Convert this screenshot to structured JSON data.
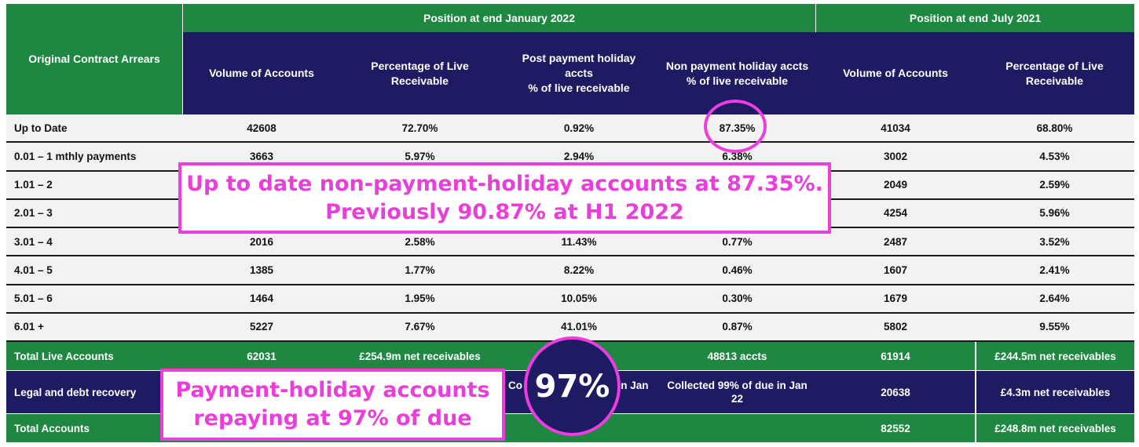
{
  "header": {
    "first_col": "Original Contract Arrears",
    "group_jan": "Position at end January 2022",
    "group_jul": "Position at end July 2021",
    "columns": [
      "Volume of Accounts",
      "Percentage of Live\nReceivable",
      "Post payment holiday\naccts\n% of live receivable",
      "Non payment holiday accts\n% of live receivable",
      "Volume of Accounts",
      "Percentage of Live\nReceivable"
    ]
  },
  "rows": [
    {
      "label": "Up to Date",
      "vol_jan": "42608",
      "pct_jan": "72.70%",
      "post_ph": "0.92%",
      "non_ph": "87.35%",
      "vol_jul": "41034",
      "pct_jul": "68.80%"
    },
    {
      "label": "0.01 – 1 mthly payments",
      "vol_jan": "3663",
      "pct_jan": "5.97%",
      "post_ph": "2.94%",
      "non_ph": "6.38%",
      "vol_jul": "3002",
      "pct_jul": "4.53%"
    },
    {
      "label": "1.01 – 2",
      "vol_jan": "",
      "pct_jan": "",
      "post_ph": "",
      "non_ph": "",
      "vol_jul": "2049",
      "pct_jul": "2.59%"
    },
    {
      "label": "2.01 – 3",
      "vol_jan": "",
      "pct_jan": "",
      "post_ph": "",
      "non_ph": "",
      "vol_jul": "4254",
      "pct_jul": "5.96%"
    },
    {
      "label": "3.01 – 4",
      "vol_jan": "2016",
      "pct_jan": "2.58%",
      "post_ph": "11.43%",
      "non_ph": "0.77%",
      "vol_jul": "2487",
      "pct_jul": "3.52%"
    },
    {
      "label": "4.01 – 5",
      "vol_jan": "1385",
      "pct_jan": "1.77%",
      "post_ph": "8.22%",
      "non_ph": "0.46%",
      "vol_jul": "1607",
      "pct_jul": "2.41%"
    },
    {
      "label": "5.01 – 6",
      "vol_jan": "1464",
      "pct_jan": "1.95%",
      "post_ph": "10.05%",
      "non_ph": "0.30%",
      "vol_jul": "1679",
      "pct_jul": "2.64%"
    },
    {
      "label": "6.01 +",
      "vol_jan": "5227",
      "pct_jan": "7.67%",
      "post_ph": "41.01%",
      "non_ph": "0.87%",
      "vol_jul": "5802",
      "pct_jul": "9.55%"
    }
  ],
  "total_live": {
    "label": "Total  Live Accounts",
    "vol_jan": "62031",
    "pct_jan": "£254.9m net receivables",
    "non_ph": "48813 accts",
    "vol_jul": "61914",
    "pct_jul": "£244.5m net receivables"
  },
  "legal": {
    "label": "Legal and debt recovery",
    "post_ph_left": "Co",
    "post_ph_right": "in Jan",
    "non_ph": "Collected 99% of due in Jan\n22",
    "vol_jul": "20638",
    "pct_jul": "£4.3m net receivables"
  },
  "total": {
    "label": "Total  Accounts",
    "vol_jul": "82552",
    "pct_jul": "£248.8m net receivables"
  },
  "annotations": {
    "box1_line1": "Up to date non-payment-holiday accounts at 87.35%.",
    "box1_line2": "Previously 90.87% at H1 2022",
    "box2_line1": "Payment-holiday accounts",
    "box2_line2": "repaying at 97% of due",
    "circle_big": "97%",
    "accent_color": "#ee3ce3",
    "green_color": "#1e8741",
    "navy_color": "#1e1b62"
  }
}
